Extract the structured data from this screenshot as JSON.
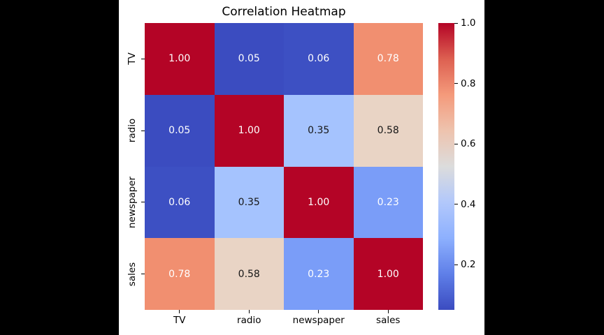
{
  "chart_data": {
    "type": "heatmap",
    "title": "Correlation Heatmap",
    "colormap": "coolwarm",
    "categories": [
      "TV",
      "radio",
      "newspaper",
      "sales"
    ],
    "matrix": [
      [
        1.0,
        0.05,
        0.06,
        0.78
      ],
      [
        0.05,
        1.0,
        0.35,
        0.58
      ],
      [
        0.06,
        0.35,
        1.0,
        0.23
      ],
      [
        0.78,
        0.58,
        0.23,
        1.0
      ]
    ],
    "value_format_decimals": 2,
    "vmin": 0.05,
    "vmax": 1.0,
    "grid": false,
    "legend_position": "right-colorbar",
    "colorbar_ticks": [
      {
        "value": 1.0,
        "label": "1.0"
      },
      {
        "value": 0.8,
        "label": "0.8"
      },
      {
        "value": 0.6,
        "label": "0.6"
      },
      {
        "value": 0.4,
        "label": "0.4"
      },
      {
        "value": 0.2,
        "label": "0.2"
      }
    ],
    "cell_colors": [
      [
        "#b40426",
        "#3b4cc0",
        "#3d50c3",
        "#f18f70"
      ],
      [
        "#3b4cc0",
        "#b40426",
        "#a5c3fe",
        "#e9d4c5"
      ],
      [
        "#3d50c3",
        "#a5c3fe",
        "#b40426",
        "#7a9df8"
      ],
      [
        "#f18f70",
        "#e9d4c5",
        "#7a9df8",
        "#b40426"
      ]
    ],
    "annotation_colors": [
      [
        "#ffffff",
        "#ffffff",
        "#ffffff",
        "#ffffff"
      ],
      [
        "#ffffff",
        "#ffffff",
        "#161616",
        "#161616"
      ],
      [
        "#ffffff",
        "#161616",
        "#ffffff",
        "#ffffff"
      ],
      [
        "#ffffff",
        "#161616",
        "#ffffff",
        "#ffffff"
      ]
    ],
    "colorbar_gradient_top_to_bottom": [
      "#b40426",
      "#dd6051",
      "#f49a7b",
      "#eec3ae",
      "#dcdcdc",
      "#b2c8fb",
      "#8db0fe",
      "#5f7fe8",
      "#3b4cc0"
    ]
  },
  "colors": {
    "page_background": "#000000",
    "figure_background": "#ffffff",
    "text": "#000000"
  }
}
